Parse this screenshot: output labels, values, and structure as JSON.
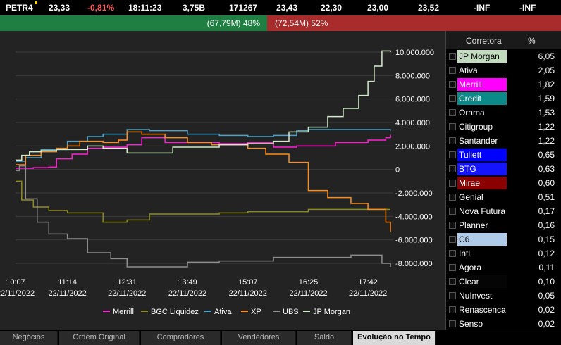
{
  "ticker": {
    "symbol": "PETR4",
    "last": "23,33",
    "change": "-0,81%",
    "time": "18:11:23",
    "volume": "3,75B",
    "trades": "171267",
    "v1": "23,43",
    "v2": "22,30",
    "v3": "23,00",
    "v4": "23,52",
    "v5": "-INF",
    "v6": "-INF"
  },
  "balance": {
    "buy_label": "(67,79M) 48%",
    "sell_label": "(72,54M) 52%",
    "buy_color": "#1f7f43",
    "sell_color": "#a92c2c"
  },
  "table": {
    "header_broker": "Corretora",
    "header_pct": "%",
    "rows": [
      {
        "name": "JP Morgan",
        "pct": "6,05",
        "color": "#c3dbbf",
        "text": "#000"
      },
      {
        "name": "Ativa",
        "pct": "2,05",
        "color": "",
        "text": "#fff"
      },
      {
        "name": "Merrill",
        "pct": "1,82",
        "color": "#ff00ff",
        "text": "#fff"
      },
      {
        "name": "Credit",
        "pct": "1,59",
        "color": "#0b8a8a",
        "text": "#fff"
      },
      {
        "name": "Orama",
        "pct": "1,53",
        "color": "",
        "text": "#fff"
      },
      {
        "name": "Citigroup",
        "pct": "1,22",
        "color": "",
        "text": "#fff"
      },
      {
        "name": "Santander",
        "pct": "1,22",
        "color": "",
        "text": "#fff"
      },
      {
        "name": "Tullett",
        "pct": "0,65",
        "color": "#0000ff",
        "text": "#fff"
      },
      {
        "name": "BTG",
        "pct": "0,63",
        "color": "#1414ff",
        "text": "#fff"
      },
      {
        "name": "Mirae",
        "pct": "0,60",
        "color": "#8b0000",
        "text": "#fff"
      },
      {
        "name": "Genial",
        "pct": "0,51",
        "color": "",
        "text": "#fff"
      },
      {
        "name": "Nova Futura",
        "pct": "0,17",
        "color": "",
        "text": "#fff"
      },
      {
        "name": "Planner",
        "pct": "0,16",
        "color": "",
        "text": "#fff"
      },
      {
        "name": "C6",
        "pct": "0,15",
        "color": "#aecbea",
        "text": "#000"
      },
      {
        "name": "Intl",
        "pct": "0,12",
        "color": "",
        "text": "#fff"
      },
      {
        "name": "Agora",
        "pct": "0,11",
        "color": "",
        "text": "#fff"
      },
      {
        "name": "Clear",
        "pct": "0,10",
        "color": "#050505",
        "text": "#fff"
      },
      {
        "name": "NuInvest",
        "pct": "0,05",
        "color": "",
        "text": "#fff"
      },
      {
        "name": "Renascenca",
        "pct": "0,02",
        "color": "",
        "text": "#fff"
      },
      {
        "name": "Senso",
        "pct": "0,02",
        "color": "",
        "text": "#fff"
      }
    ]
  },
  "tabs": [
    {
      "label": "Negócios",
      "active": false
    },
    {
      "label": "Ordem Original",
      "active": false
    },
    {
      "label": "Compradores",
      "active": false
    },
    {
      "label": "Vendedores",
      "active": false
    },
    {
      "label": "Saldo",
      "active": false
    },
    {
      "label": "Evolução no Tempo",
      "active": true
    }
  ],
  "chart_data": {
    "type": "line",
    "ylim": [
      -8600000,
      10600000
    ],
    "xlim": [
      "10:07",
      "18:11"
    ],
    "yticks": [
      10000000,
      8000000,
      6000000,
      4000000,
      2000000,
      0,
      -2000000,
      -4000000,
      -6000000,
      -8000000
    ],
    "ytick_labels": [
      "10.000.000",
      "8.000.000",
      "6.000.000",
      "4.000.000",
      "2.000.000",
      "0",
      "-2.000.000",
      "-4.000.000",
      "-6.000.000",
      "-8.000.000"
    ],
    "xticks": [
      "10:07",
      "11:14",
      "12:31",
      "13:49",
      "15:07",
      "16:25",
      "17:42"
    ],
    "xtick_date": "22/11/2022",
    "grid": true,
    "legend_position": "bottom",
    "series": [
      {
        "name": "Merrill",
        "color": "#ff1fd2",
        "points": [
          [
            "10:07",
            100000
          ],
          [
            "10:30",
            150000
          ],
          [
            "10:50",
            200000
          ],
          [
            "11:00",
            900000
          ],
          [
            "11:20",
            1300000
          ],
          [
            "11:40",
            1800000
          ],
          [
            "12:00",
            1900000
          ],
          [
            "12:31",
            2100000
          ],
          [
            "12:50",
            2700000
          ],
          [
            "13:20",
            2300000
          ],
          [
            "13:49",
            2300000
          ],
          [
            "14:30",
            2200000
          ],
          [
            "15:07",
            2300000
          ],
          [
            "15:40",
            1900000
          ],
          [
            "16:10",
            2000000
          ],
          [
            "16:25",
            2000000
          ],
          [
            "17:00",
            2300000
          ],
          [
            "17:42",
            2500000
          ],
          [
            "18:05",
            2700000
          ],
          [
            "18:11",
            2950000
          ]
        ]
      },
      {
        "name": "BGC Liquidez",
        "color": "#8c8c1e",
        "points": [
          [
            "10:07",
            -1000000
          ],
          [
            "10:15",
            -2600000
          ],
          [
            "10:30",
            -3200000
          ],
          [
            "10:50",
            -3500000
          ],
          [
            "11:14",
            -3700000
          ],
          [
            "11:50",
            -3700000
          ],
          [
            "12:00",
            -4500000
          ],
          [
            "12:31",
            -4300000
          ],
          [
            "13:00",
            -3800000
          ],
          [
            "13:49",
            -3800000
          ],
          [
            "14:30",
            -3700000
          ],
          [
            "15:07",
            -3600000
          ],
          [
            "16:25",
            -3400000
          ],
          [
            "17:42",
            -3400000
          ],
          [
            "18:11",
            -3400000
          ]
        ]
      },
      {
        "name": "Ativa",
        "color": "#4aa3c8",
        "points": [
          [
            "10:07",
            700000
          ],
          [
            "10:20",
            1000000
          ],
          [
            "10:40",
            1700000
          ],
          [
            "11:14",
            2400000
          ],
          [
            "11:40",
            2800000
          ],
          [
            "12:00",
            3000000
          ],
          [
            "12:31",
            3400000
          ],
          [
            "13:00",
            3300000
          ],
          [
            "13:49",
            3000000
          ],
          [
            "14:30",
            2900000
          ],
          [
            "15:07",
            2800000
          ],
          [
            "15:40",
            2900000
          ],
          [
            "16:10",
            3300000
          ],
          [
            "16:25",
            3400000
          ],
          [
            "17:42",
            3400000
          ],
          [
            "18:11",
            3300000
          ]
        ]
      },
      {
        "name": "XP",
        "color": "#ff8c1a",
        "points": [
          [
            "10:07",
            400000
          ],
          [
            "10:20",
            1200000
          ],
          [
            "10:40",
            1500000
          ],
          [
            "11:00",
            1800000
          ],
          [
            "11:14",
            2000000
          ],
          [
            "11:30",
            2400000
          ],
          [
            "12:00",
            2300000
          ],
          [
            "12:20",
            2500000
          ],
          [
            "12:31",
            3200000
          ],
          [
            "12:50",
            3000000
          ],
          [
            "13:20",
            2700000
          ],
          [
            "13:49",
            2300000
          ],
          [
            "14:20",
            2100000
          ],
          [
            "15:07",
            1800000
          ],
          [
            "15:30",
            1300000
          ],
          [
            "16:00",
            600000
          ],
          [
            "16:25",
            -1800000
          ],
          [
            "16:50",
            -2400000
          ],
          [
            "17:20",
            -2900000
          ],
          [
            "17:42",
            -3400000
          ],
          [
            "18:05",
            -4500000
          ],
          [
            "18:11",
            -5300000
          ]
        ]
      },
      {
        "name": "UBS",
        "color": "#8e8e8e",
        "points": [
          [
            "10:07",
            -100000
          ],
          [
            "10:12",
            300000
          ],
          [
            "10:20",
            -2500000
          ],
          [
            "10:35",
            -4500000
          ],
          [
            "10:50",
            -5500000
          ],
          [
            "11:14",
            -5900000
          ],
          [
            "11:40",
            -7100000
          ],
          [
            "12:10",
            -7600000
          ],
          [
            "12:31",
            -8300000
          ],
          [
            "13:00",
            -8300000
          ],
          [
            "13:49",
            -7900000
          ],
          [
            "14:30",
            -7800000
          ],
          [
            "15:07",
            -7800000
          ],
          [
            "15:40",
            -7500000
          ],
          [
            "16:25",
            -7500000
          ],
          [
            "17:20",
            -7300000
          ],
          [
            "17:42",
            -7300000
          ],
          [
            "18:00",
            -8000000
          ],
          [
            "18:11",
            -8300000
          ]
        ]
      },
      {
        "name": "JP Morgan",
        "color": "#d2ecc9",
        "points": [
          [
            "10:07",
            800000
          ],
          [
            "10:15",
            1200000
          ],
          [
            "10:25",
            1500000
          ],
          [
            "10:40",
            1600000
          ],
          [
            "11:00",
            1700000
          ],
          [
            "11:14",
            1700000
          ],
          [
            "11:40",
            2000000
          ],
          [
            "12:00",
            1800000
          ],
          [
            "12:31",
            1400000
          ],
          [
            "13:00",
            1400000
          ],
          [
            "13:30",
            1900000
          ],
          [
            "13:49",
            1900000
          ],
          [
            "14:30",
            2100000
          ],
          [
            "15:07",
            2200000
          ],
          [
            "15:40",
            2400000
          ],
          [
            "16:00",
            3200000
          ],
          [
            "16:25",
            3600000
          ],
          [
            "16:50",
            4500000
          ],
          [
            "17:10",
            5200000
          ],
          [
            "17:30",
            6300000
          ],
          [
            "17:42",
            7500000
          ],
          [
            "17:50",
            8800000
          ],
          [
            "18:00",
            10100000
          ],
          [
            "18:11",
            10000000
          ]
        ]
      }
    ]
  }
}
